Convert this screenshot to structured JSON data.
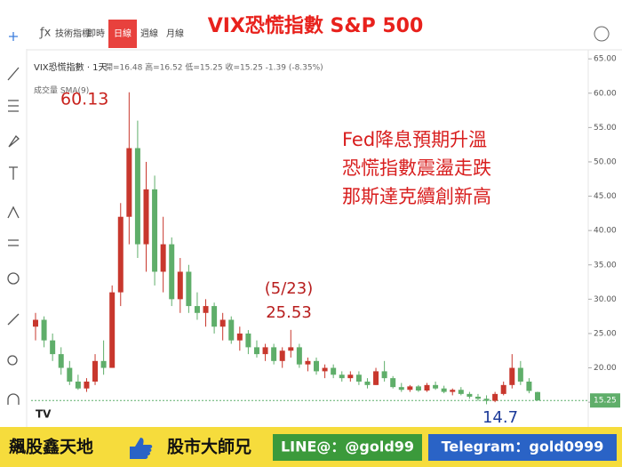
{
  "chart_data": {
    "type": "candlestick",
    "title": "VIX恐慌指數 S&P 500",
    "toolbar": [
      "技術指標",
      "即時",
      "日線",
      "週線",
      "月線"
    ],
    "active_tab": 2,
    "symbol": "VIX恐慌指數 · 1天",
    "ohlc_info": "開=16.48 高=16.52 低=15.25 收=15.25 -1.39 (-8.35%)",
    "volume_label": "成交量 SMA(9)",
    "annotations": [
      "60.13",
      "Fed降息預期升溫",
      "恐慌指數震盪走跌",
      "那斯達克續創新高",
      "(5/23)",
      "25.53",
      "14.7"
    ],
    "up_color": "#c8372d",
    "down_color": "#5fae6a",
    "ylim": [
      14.5,
      65.8
    ],
    "yticks": [
      {
        "value": 15,
        "label": "15.00"
      },
      {
        "value": 20,
        "label": "20.00"
      },
      {
        "value": 25,
        "label": "25.00"
      },
      {
        "value": 30,
        "label": "30.00"
      },
      {
        "value": 35,
        "label": "35.00"
      },
      {
        "value": 40,
        "label": "40.00"
      },
      {
        "value": 45,
        "label": "45.00"
      },
      {
        "value": 50,
        "label": "50.00"
      },
      {
        "value": 55,
        "label": "55.00"
      },
      {
        "value": 60,
        "label": "60.00"
      },
      {
        "value": 65,
        "label": "65.00"
      }
    ],
    "last_price": 15.25,
    "open": [
      26,
      27,
      24,
      22,
      20,
      18,
      17,
      18,
      21,
      20,
      31,
      42,
      52,
      38,
      46,
      34,
      38,
      30,
      34,
      29,
      28,
      29,
      26,
      27,
      24,
      25,
      23,
      22,
      23,
      21,
      22.5,
      23,
      20.5,
      21,
      19.5,
      20,
      19,
      18.5,
      19,
      18,
      17.5,
      19.5,
      18.5,
      17.2,
      16.8,
      17.3,
      16.7,
      17.5,
      17,
      16.5,
      16.8,
      16.2,
      15.8,
      15.5,
      15.2,
      16.2,
      17.5,
      20,
      18,
      16.48
    ],
    "high": [
      28,
      27.5,
      25,
      23,
      21,
      19,
      18.5,
      22,
      24,
      32,
      44,
      60.13,
      56,
      50,
      48,
      42,
      39,
      36,
      35,
      31,
      30,
      29.5,
      28,
      27.5,
      26,
      25.5,
      24,
      23.5,
      23.5,
      23,
      25.53,
      23.5,
      21.5,
      21.5,
      20.5,
      20.5,
      19.5,
      19.5,
      19.5,
      18.5,
      20,
      21,
      18.8,
      17.8,
      17.5,
      17.5,
      17.8,
      18,
      17.4,
      17,
      17.2,
      16.5,
      16.2,
      16,
      16.5,
      18,
      22,
      21,
      18.5,
      16.52
    ],
    "low": [
      24,
      23,
      21,
      19,
      17.5,
      16.8,
      16.5,
      17.5,
      19,
      20,
      29,
      38,
      36,
      34,
      32,
      31,
      29,
      28,
      28,
      27,
      26,
      25,
      24,
      23.5,
      22.5,
      22,
      21.5,
      21,
      20.5,
      20,
      21.5,
      20,
      19.5,
      19,
      18.5,
      18.5,
      18,
      18,
      17.5,
      17,
      17.5,
      18,
      17,
      16.5,
      16.5,
      16.5,
      16.5,
      16.8,
      16.3,
      16,
      16,
      15.5,
      15.2,
      14.7,
      15,
      16,
      17,
      17.5,
      16.3,
      15.25
    ],
    "close": [
      27,
      24,
      22,
      20,
      18,
      17,
      18,
      21,
      20,
      31,
      42,
      52,
      38,
      46,
      34,
      38,
      30,
      34,
      29,
      28,
      29,
      26,
      27,
      24,
      25,
      23,
      22,
      23,
      21,
      22.5,
      23,
      20.5,
      21,
      19.5,
      20,
      19,
      18.5,
      19,
      18,
      17.5,
      19.5,
      18.5,
      17.2,
      16.8,
      17.3,
      16.7,
      17.5,
      17,
      16.5,
      16.8,
      16.2,
      15.8,
      15.5,
      15.2,
      16.2,
      17.5,
      20,
      18,
      16.64,
      15.25
    ]
  },
  "footer": [
    "飆股鑫天地",
    "股市大師兄",
    "LINE@：@gold99",
    "Telegram：gold0999"
  ]
}
